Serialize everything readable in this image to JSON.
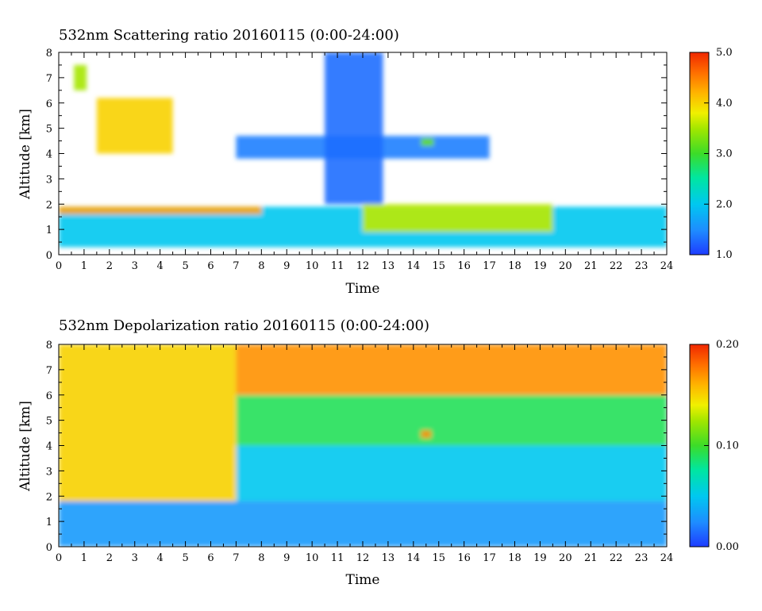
{
  "chart_data": [
    {
      "type": "heatmap",
      "title": "532nm Scattering ratio  20160115 (0:00-24:00)",
      "xlabel": "Time",
      "ylabel": "Altitude [km]",
      "xlim": [
        0,
        24
      ],
      "ylim": [
        0,
        8
      ],
      "x_ticks": [
        "0",
        "1",
        "2",
        "3",
        "4",
        "5",
        "6",
        "7",
        "8",
        "9",
        "10",
        "11",
        "12",
        "13",
        "14",
        "15",
        "16",
        "17",
        "18",
        "19",
        "20",
        "21",
        "22",
        "23",
        "24"
      ],
      "y_ticks": [
        "0",
        "1",
        "2",
        "3",
        "4",
        "5",
        "6",
        "7",
        "8"
      ],
      "colorbar": {
        "min": 1.0,
        "max": 5.0,
        "ticks": [
          "1.0",
          "2.0",
          "3.0",
          "4.0",
          "5.0"
        ]
      },
      "features": [
        {
          "time_start": 0.0,
          "time_end": 24.0,
          "alt_bottom": 0.3,
          "alt_top": 1.9,
          "value": 2.0
        },
        {
          "time_start": 12.0,
          "time_end": 19.5,
          "alt_bottom": 0.9,
          "alt_top": 2.0,
          "value": 3.6
        },
        {
          "time_start": 0.0,
          "time_end": 8.0,
          "alt_bottom": 1.6,
          "alt_top": 1.9,
          "value": 4.3
        },
        {
          "time_start": 1.5,
          "time_end": 4.5,
          "alt_bottom": 4.0,
          "alt_top": 6.2,
          "value": 4.0
        },
        {
          "time_start": 0.6,
          "time_end": 1.1,
          "alt_bottom": 6.5,
          "alt_top": 7.5,
          "value": 3.5
        },
        {
          "time_start": 7.0,
          "time_end": 17.0,
          "alt_bottom": 3.8,
          "alt_top": 4.7,
          "value": 1.4
        },
        {
          "time_start": 10.5,
          "time_end": 12.8,
          "alt_bottom": 2.0,
          "alt_top": 8.0,
          "value": 1.3
        },
        {
          "time_start": 14.3,
          "time_end": 14.8,
          "alt_bottom": 4.3,
          "alt_top": 4.6,
          "value": 3.2
        }
      ]
    },
    {
      "type": "heatmap",
      "title": "532nm Depolarization ratio  20160115 (0:00-24:00)",
      "xlabel": "Time",
      "ylabel": "Altitude [km]",
      "xlim": [
        0,
        24
      ],
      "ylim": [
        0,
        8
      ],
      "x_ticks": [
        "0",
        "1",
        "2",
        "3",
        "4",
        "5",
        "6",
        "7",
        "8",
        "9",
        "10",
        "11",
        "12",
        "13",
        "14",
        "15",
        "16",
        "17",
        "18",
        "19",
        "20",
        "21",
        "22",
        "23",
        "24"
      ],
      "y_ticks": [
        "0",
        "1",
        "2",
        "3",
        "4",
        "5",
        "6",
        "7",
        "8"
      ],
      "colorbar": {
        "min": 0.0,
        "max": 0.2,
        "ticks": [
          "0.00",
          "0.10",
          "0.20"
        ]
      },
      "features": [
        {
          "time_start": 0.0,
          "time_end": 24.0,
          "alt_bottom": 0.0,
          "alt_top": 1.8,
          "value": 0.03
        },
        {
          "time_start": 7.0,
          "time_end": 24.0,
          "alt_bottom": 1.8,
          "alt_top": 4.0,
          "value": 0.05
        },
        {
          "time_start": 7.0,
          "time_end": 24.0,
          "alt_bottom": 4.0,
          "alt_top": 6.0,
          "value": 0.09
        },
        {
          "time_start": 7.0,
          "time_end": 24.0,
          "alt_bottom": 6.0,
          "alt_top": 8.0,
          "value": 0.17
        },
        {
          "time_start": 0.0,
          "time_end": 7.0,
          "alt_bottom": 1.8,
          "alt_top": 8.0,
          "value": 0.15
        },
        {
          "time_start": 14.3,
          "time_end": 14.7,
          "alt_bottom": 4.3,
          "alt_top": 4.6,
          "value": 0.17
        }
      ]
    }
  ]
}
